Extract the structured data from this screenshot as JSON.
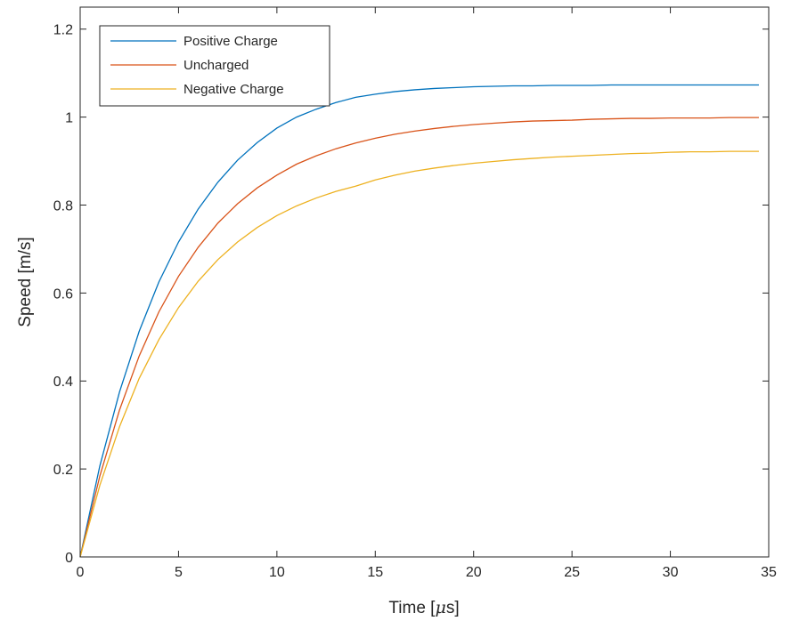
{
  "colors": {
    "axes": "#262626",
    "background": "#ffffff"
  },
  "chart_data": {
    "type": "line",
    "xlabel_prefix": "Time [",
    "xlabel_mu": "μ",
    "xlabel_suffix": "s]",
    "ylabel": "Speed [m/s]",
    "xlim": [
      0,
      35
    ],
    "ylim": [
      0,
      1.25
    ],
    "x_ticks": [
      0,
      5,
      10,
      15,
      20,
      25,
      30,
      35
    ],
    "x_tick_labels": [
      "0",
      "5",
      "10",
      "15",
      "20",
      "25",
      "30",
      "35"
    ],
    "y_ticks": [
      0,
      0.2,
      0.4,
      0.6,
      0.8,
      1.0,
      1.2
    ],
    "y_tick_labels": [
      "0",
      "0.2",
      "0.4",
      "0.6",
      "0.8",
      "1",
      "1.2"
    ],
    "grid": false,
    "legend_position": "top-left",
    "x": [
      0,
      1,
      2,
      3,
      4,
      5,
      6,
      7,
      8,
      9,
      10,
      11,
      12,
      13,
      14,
      15,
      16,
      17,
      18,
      19,
      20,
      21,
      22,
      23,
      24,
      25,
      26,
      27,
      28,
      29,
      30,
      31,
      32,
      33,
      34,
      34.5
    ],
    "series": [
      {
        "name": "Positive Charge",
        "color": "#0072BD",
        "values": [
          0,
          0.207,
          0.375,
          0.513,
          0.625,
          0.716,
          0.791,
          0.852,
          0.902,
          0.942,
          0.975,
          1.0,
          1.018,
          1.033,
          1.045,
          1.052,
          1.058,
          1.062,
          1.065,
          1.067,
          1.069,
          1.07,
          1.071,
          1.071,
          1.072,
          1.072,
          1.072,
          1.073,
          1.073,
          1.073,
          1.073,
          1.073,
          1.073,
          1.073,
          1.073,
          1.073
        ]
      },
      {
        "name": "Uncharged",
        "color": "#D95319",
        "values": [
          0,
          0.184,
          0.334,
          0.457,
          0.557,
          0.638,
          0.704,
          0.759,
          0.803,
          0.839,
          0.868,
          0.893,
          0.912,
          0.928,
          0.941,
          0.952,
          0.961,
          0.968,
          0.974,
          0.979,
          0.983,
          0.986,
          0.989,
          0.991,
          0.992,
          0.993,
          0.995,
          0.996,
          0.997,
          0.997,
          0.998,
          0.998,
          0.998,
          0.999,
          0.999,
          0.999
        ]
      },
      {
        "name": "Negative Charge",
        "color": "#EDB120",
        "values": [
          0,
          0.163,
          0.296,
          0.406,
          0.494,
          0.567,
          0.627,
          0.676,
          0.716,
          0.749,
          0.776,
          0.798,
          0.816,
          0.831,
          0.843,
          0.857,
          0.868,
          0.877,
          0.884,
          0.89,
          0.895,
          0.899,
          0.903,
          0.906,
          0.909,
          0.911,
          0.913,
          0.915,
          0.917,
          0.918,
          0.92,
          0.921,
          0.921,
          0.922,
          0.922,
          0.922
        ]
      }
    ]
  }
}
